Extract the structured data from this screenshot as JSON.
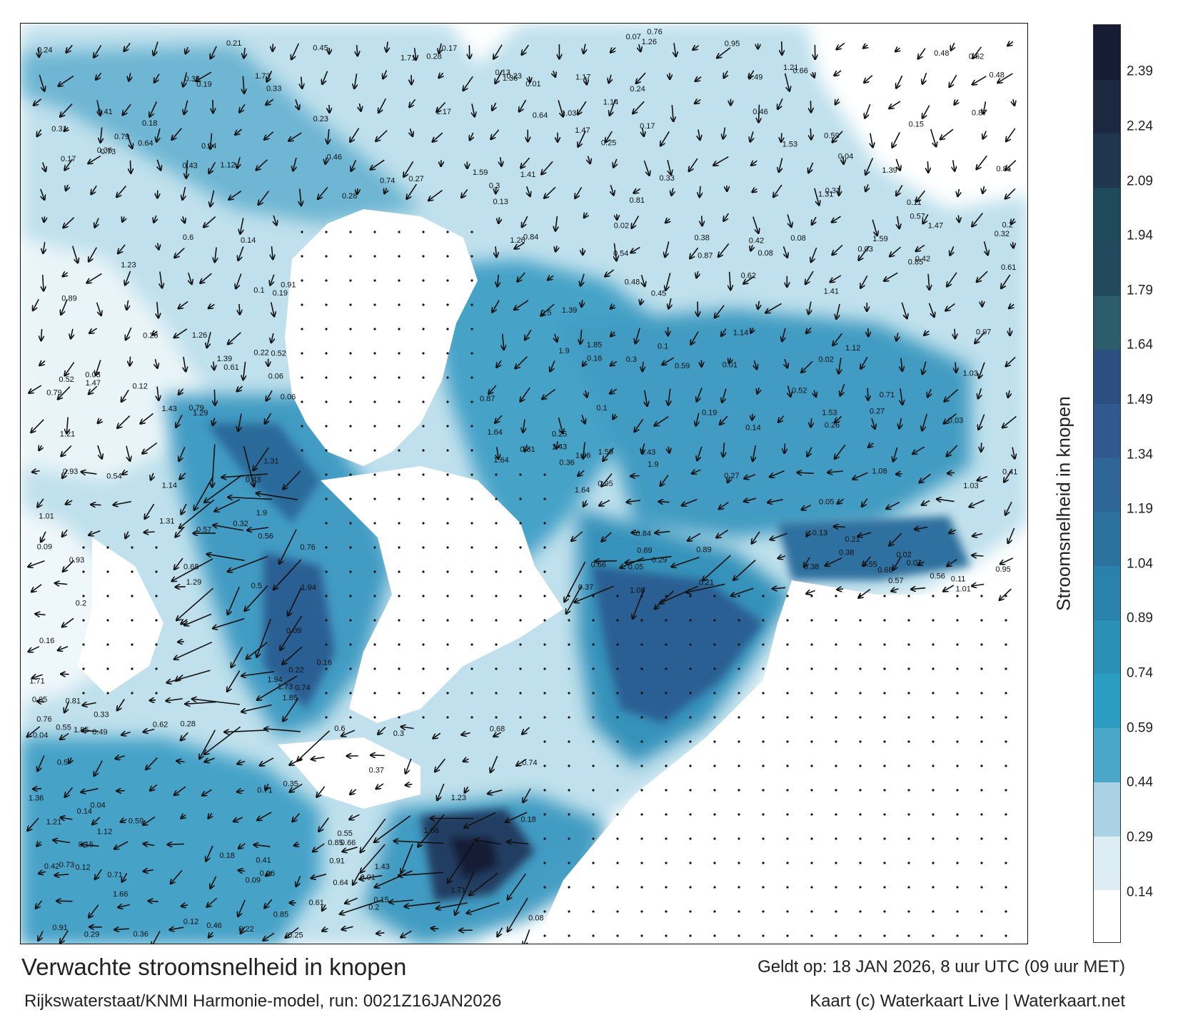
{
  "title": "Verwachte stroomsnelheid in knopen",
  "subtitle": "Rijkswaterstaat/KNMI Harmonie-model, run: 0021Z16JAN2026",
  "valid_time": "Geldt op: 18 JAN 2026, 8 uur UTC (09 uur MET)",
  "credits": "Kaart (c) Waterkaart Live | Waterkaart.net",
  "colorbar": {
    "label": "Stroomsnelheid in knopen",
    "ticks": [
      "0.14",
      "0.29",
      "0.44",
      "0.59",
      "0.74",
      "0.89",
      "1.04",
      "1.19",
      "1.34",
      "1.49",
      "1.64",
      "1.79",
      "1.94",
      "2.09",
      "2.24",
      "2.39"
    ],
    "tick_values": [
      0.14,
      0.29,
      0.44,
      0.59,
      0.74,
      0.89,
      1.04,
      1.19,
      1.34,
      1.49,
      1.64,
      1.79,
      1.94,
      2.09,
      2.24,
      2.39
    ],
    "range": [
      0,
      2.52
    ],
    "colors": [
      "#ffffff",
      "#dcedf4",
      "#a9d2e4",
      "#4aa7c8",
      "#2b9dc2",
      "#2a90b6",
      "#2a81ab",
      "#2c729e",
      "#2f6698",
      "#30598f",
      "#2c4f81",
      "#2b5d6b",
      "#22495e",
      "#1f4a5a",
      "#20354e",
      "#1b2840",
      "#171c35"
    ]
  },
  "current_labels": [
    {
      "text": "0.43"
    },
    {
      "text": "0.27"
    },
    {
      "text": "0.17"
    },
    {
      "text": "0.28"
    },
    {
      "text": "0.19"
    },
    {
      "text": "0.3"
    },
    {
      "text": "0.24"
    },
    {
      "text": "0.15"
    },
    {
      "text": "0.18"
    },
    {
      "text": "0.22"
    },
    {
      "text": "0.21"
    },
    {
      "text": "0.16"
    },
    {
      "text": "0.12"
    },
    {
      "text": "0.13"
    },
    {
      "text": "0.14"
    },
    {
      "text": "0.1"
    },
    {
      "text": "0.09"
    },
    {
      "text": "0.08"
    },
    {
      "text": "0.07"
    },
    {
      "text": "0.06"
    },
    {
      "text": "0.05"
    },
    {
      "text": "0.04"
    },
    {
      "text": "0.03"
    },
    {
      "text": "0.02"
    },
    {
      "text": "0.01"
    },
    {
      "text": "0.33"
    },
    {
      "text": "0.36"
    },
    {
      "text": "0.31"
    },
    {
      "text": "0.25"
    },
    {
      "text": "0.2"
    },
    {
      "text": "0.38"
    },
    {
      "text": "0.41"
    },
    {
      "text": "0.42"
    },
    {
      "text": "0.46"
    },
    {
      "text": "0.48"
    },
    {
      "text": "0.5"
    },
    {
      "text": "0.52"
    },
    {
      "text": "0.55"
    },
    {
      "text": "0.57"
    },
    {
      "text": "0.59"
    },
    {
      "text": "0.61"
    },
    {
      "text": "0.64"
    },
    {
      "text": "0.66"
    },
    {
      "text": "0.71"
    },
    {
      "text": "0.74"
    },
    {
      "text": "0.76"
    },
    {
      "text": "0.79"
    },
    {
      "text": "0.81"
    },
    {
      "text": "0.85"
    },
    {
      "text": "0.87"
    },
    {
      "text": "0.89"
    },
    {
      "text": "0.91"
    },
    {
      "text": "0.95"
    },
    {
      "text": "1.03"
    },
    {
      "text": "1.08"
    },
    {
      "text": "1.12"
    },
    {
      "text": "1.14"
    },
    {
      "text": "1.21"
    },
    {
      "text": "1.26"
    },
    {
      "text": "1.31"
    },
    {
      "text": "1.39"
    },
    {
      "text": "1.43"
    },
    {
      "text": "1.47"
    },
    {
      "text": "1.59"
    },
    {
      "text": "1.64"
    },
    {
      "text": "1.71"
    },
    {
      "text": "1.85"
    },
    {
      "text": "1.9"
    },
    {
      "text": "0.62"
    },
    {
      "text": "0.68"
    },
    {
      "text": "0.54"
    },
    {
      "text": "0.35"
    },
    {
      "text": "0.32"
    },
    {
      "text": "0.26"
    },
    {
      "text": "0.29"
    },
    {
      "text": "0.23"
    },
    {
      "text": "0.11"
    },
    {
      "text": "0.37"
    },
    {
      "text": "0.45"
    },
    {
      "text": "0.49"
    },
    {
      "text": "0.56"
    },
    {
      "text": "0.6"
    },
    {
      "text": "0.73"
    },
    {
      "text": "0.84"
    },
    {
      "text": "0.93"
    },
    {
      "text": "1.01"
    },
    {
      "text": "1.17"
    },
    {
      "text": "1.23"
    },
    {
      "text": "1.29"
    },
    {
      "text": "1.36"
    },
    {
      "text": "1.41"
    },
    {
      "text": "1.53"
    },
    {
      "text": "1.66"
    },
    {
      "text": "1.73"
    },
    {
      "text": "1.94"
    }
  ]
}
